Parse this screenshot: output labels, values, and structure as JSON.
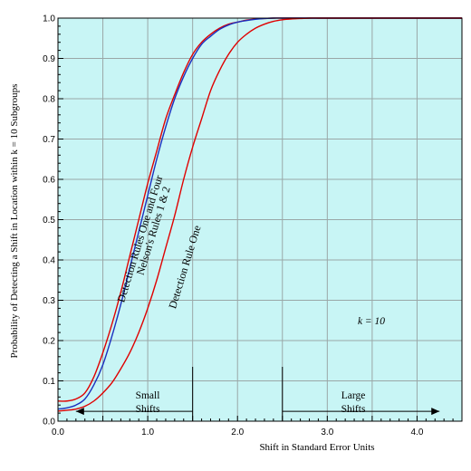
{
  "chart_data": {
    "type": "line",
    "xlabel": "Shift in Standard Error Units",
    "ylabel": "Probability of Detecting a Shift in Location within k = 10 Subgroups",
    "xlim": [
      0,
      4.5
    ],
    "ylim": [
      0,
      1.0
    ],
    "xticks": [
      0.0,
      1.0,
      2.0,
      3.0,
      4.0
    ],
    "xtick_labels": [
      "0.0",
      "1.0",
      "2.0",
      "3.0",
      "4.0"
    ],
    "yticks": [
      0.0,
      0.1,
      0.2,
      0.3,
      0.4,
      0.5,
      0.6,
      0.7,
      0.8,
      0.9,
      1.0
    ],
    "ytick_labels": [
      "0.0",
      "0.1",
      "0.2",
      "0.3",
      "0.4",
      "0.5",
      "0.6",
      "0.7",
      "0.8",
      "0.9",
      "1.0"
    ],
    "grid": true,
    "background_color": "#c8f5f5",
    "x": [
      0.0,
      0.1,
      0.2,
      0.3,
      0.4,
      0.5,
      0.6,
      0.7,
      0.8,
      0.9,
      1.0,
      1.1,
      1.2,
      1.3,
      1.4,
      1.5,
      1.6,
      1.7,
      1.8,
      1.9,
      2.0,
      2.1,
      2.2,
      2.3,
      2.4,
      2.5,
      2.6,
      2.7,
      2.8,
      2.9,
      3.0,
      3.5,
      4.0,
      4.5
    ],
    "series": [
      {
        "name": "Detection Rules One and Four",
        "color": "#e00000",
        "values": [
          0.05,
          0.05,
          0.055,
          0.07,
          0.11,
          0.17,
          0.24,
          0.32,
          0.41,
          0.5,
          0.59,
          0.67,
          0.75,
          0.81,
          0.865,
          0.91,
          0.94,
          0.96,
          0.975,
          0.985,
          0.99,
          0.995,
          0.998,
          0.999,
          1.0,
          1.0,
          1.0,
          1.0,
          1.0,
          1.0,
          1.0,
          1.0,
          1.0,
          1.0
        ]
      },
      {
        "name": "Nelson's Rules 1 & 2",
        "color": "#1a2fbf",
        "values": [
          0.03,
          0.033,
          0.04,
          0.055,
          0.09,
          0.14,
          0.21,
          0.29,
          0.38,
          0.47,
          0.56,
          0.65,
          0.73,
          0.8,
          0.855,
          0.9,
          0.935,
          0.955,
          0.972,
          0.983,
          0.99,
          0.994,
          0.997,
          0.999,
          1.0,
          1.0,
          1.0,
          1.0,
          1.0,
          1.0,
          1.0,
          1.0,
          1.0,
          1.0
        ]
      },
      {
        "name": "Detection Rule One",
        "color": "#e00000",
        "values": [
          0.025,
          0.027,
          0.03,
          0.037,
          0.05,
          0.07,
          0.095,
          0.13,
          0.17,
          0.22,
          0.28,
          0.35,
          0.43,
          0.51,
          0.6,
          0.68,
          0.75,
          0.82,
          0.87,
          0.91,
          0.94,
          0.96,
          0.975,
          0.985,
          0.992,
          0.996,
          0.998,
          0.999,
          1.0,
          1.0,
          1.0,
          1.0,
          1.0,
          1.0
        ]
      }
    ],
    "curve_labels": [
      {
        "text": "Detection Rules One and Four",
        "at_x": 0.95,
        "at_y": 0.45
      },
      {
        "text": "Nelson's Rules 1 & 2",
        "at_x": 1.1,
        "at_y": 0.47
      },
      {
        "text": "Detection Rule One",
        "at_x": 1.45,
        "at_y": 0.38
      }
    ],
    "annotations": {
      "small_line1": "Small",
      "small_line2": "Shifts",
      "large_line1": "Large",
      "large_line2": "Shifts",
      "k_label": "k = 10"
    },
    "arrows": [
      {
        "name": "small-shifts",
        "from_x": 1.5,
        "to_x": 0.2,
        "y": 0.02
      },
      {
        "name": "large-shifts",
        "from_x": 2.5,
        "to_x": 4.25,
        "y": 0.02
      }
    ],
    "vertical_markers": [
      1.5,
      2.5
    ]
  }
}
